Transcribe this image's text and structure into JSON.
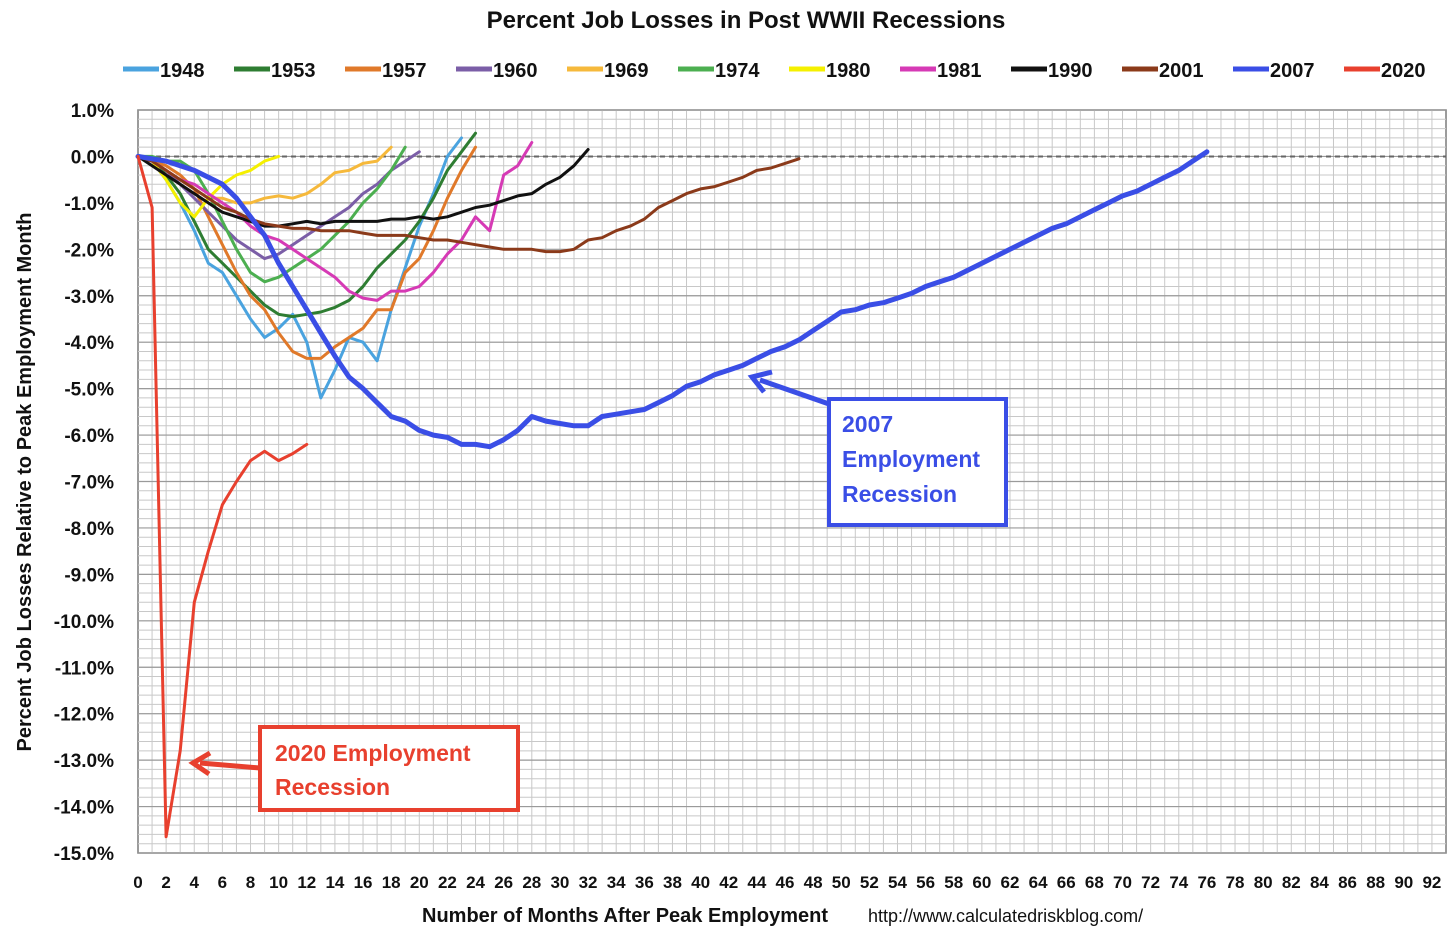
{
  "chart_data": {
    "type": "line",
    "title": "Percent Job Losses in Post WWII Recessions",
    "xlabel": "Number of Months After Peak Employment",
    "ylabel": "Percent Job Losses Relative to Peak Employment Month",
    "source": "http://www.calculatedriskblog.com/",
    "xlim": [
      0,
      93
    ],
    "ylim": [
      -15,
      1
    ],
    "x_ticks": [
      0,
      2,
      4,
      6,
      8,
      10,
      12,
      14,
      16,
      18,
      20,
      22,
      24,
      26,
      28,
      30,
      32,
      34,
      36,
      38,
      40,
      42,
      44,
      46,
      48,
      50,
      52,
      54,
      56,
      58,
      60,
      62,
      64,
      66,
      68,
      70,
      72,
      74,
      76,
      78,
      80,
      82,
      84,
      86,
      88,
      90,
      92
    ],
    "y_ticks": [
      1,
      0,
      -1,
      -2,
      -3,
      -4,
      -5,
      -6,
      -7,
      -8,
      -9,
      -10,
      -11,
      -12,
      -13,
      -14,
      -15
    ],
    "y_tick_labels": [
      "1.0%",
      "0.0%",
      "-1.0%",
      "-2.0%",
      "-3.0%",
      "-4.0%",
      "-5.0%",
      "-6.0%",
      "-7.0%",
      "-8.0%",
      "-9.0%",
      "-10.0%",
      "-11.0%",
      "-12.0%",
      "-13.0%",
      "-14.0%",
      "-15.0%"
    ],
    "grid": true,
    "legend_position": "top",
    "series": [
      {
        "name": "1948",
        "color": "#4aa3df",
        "width": 3,
        "values": [
          0,
          -0.1,
          -0.5,
          -1.0,
          -1.6,
          -2.3,
          -2.5,
          -3.0,
          -3.5,
          -3.9,
          -3.7,
          -3.4,
          -4.0,
          -5.2,
          -4.6,
          -3.9,
          -4.0,
          -4.4,
          -3.3,
          -2.4,
          -1.5,
          -0.8,
          0.0,
          0.4
        ]
      },
      {
        "name": "1953",
        "color": "#2e7d32",
        "width": 3,
        "values": [
          0,
          -0.1,
          -0.4,
          -0.8,
          -1.4,
          -2.0,
          -2.3,
          -2.6,
          -2.9,
          -3.2,
          -3.4,
          -3.45,
          -3.4,
          -3.35,
          -3.25,
          -3.1,
          -2.8,
          -2.4,
          -2.1,
          -1.8,
          -1.4,
          -0.9,
          -0.3,
          0.1,
          0.5
        ]
      },
      {
        "name": "1957",
        "color": "#e0792a",
        "width": 3,
        "values": [
          0,
          -0.1,
          -0.2,
          -0.4,
          -0.7,
          -1.3,
          -1.9,
          -2.5,
          -3.0,
          -3.3,
          -3.8,
          -4.2,
          -4.35,
          -4.35,
          -4.1,
          -3.9,
          -3.7,
          -3.3,
          -3.3,
          -2.5,
          -2.2,
          -1.6,
          -0.9,
          -0.3,
          0.2
        ]
      },
      {
        "name": "1960",
        "color": "#7b5ea7",
        "width": 3,
        "values": [
          0,
          -0.1,
          -0.3,
          -0.6,
          -0.9,
          -1.2,
          -1.5,
          -1.8,
          -2.0,
          -2.2,
          -2.1,
          -1.9,
          -1.7,
          -1.5,
          -1.3,
          -1.1,
          -0.8,
          -0.6,
          -0.3,
          -0.1,
          0.1
        ]
      },
      {
        "name": "1969",
        "color": "#f6b93b",
        "width": 3,
        "values": [
          0,
          -0.1,
          -0.3,
          -0.5,
          -0.7,
          -0.9,
          -0.9,
          -1.0,
          -1.0,
          -0.9,
          -0.85,
          -0.9,
          -0.8,
          -0.6,
          -0.35,
          -0.3,
          -0.15,
          -0.1,
          0.2
        ]
      },
      {
        "name": "1974",
        "color": "#4caf50",
        "width": 3,
        "values": [
          0,
          0,
          -0.1,
          -0.1,
          -0.3,
          -0.8,
          -1.4,
          -2.0,
          -2.5,
          -2.7,
          -2.6,
          -2.4,
          -2.2,
          -2.0,
          -1.7,
          -1.4,
          -1.0,
          -0.7,
          -0.3,
          0.2
        ]
      },
      {
        "name": "1980",
        "color": "#f5f000",
        "width": 3,
        "values": [
          0,
          -0.1,
          -0.5,
          -1.0,
          -1.3,
          -0.9,
          -0.6,
          -0.4,
          -0.3,
          -0.1,
          0.0
        ]
      },
      {
        "name": "1981",
        "color": "#d63ab5",
        "width": 3,
        "values": [
          0,
          -0.1,
          -0.3,
          -0.5,
          -0.6,
          -0.8,
          -1.0,
          -1.2,
          -1.5,
          -1.7,
          -1.8,
          -2.0,
          -2.2,
          -2.4,
          -2.6,
          -2.9,
          -3.05,
          -3.1,
          -2.9,
          -2.9,
          -2.8,
          -2.5,
          -2.1,
          -1.8,
          -1.3,
          -1.6,
          -0.4,
          -0.2,
          0.3
        ]
      },
      {
        "name": "1990",
        "color": "#111111",
        "width": 3,
        "values": [
          0,
          -0.2,
          -0.4,
          -0.6,
          -0.8,
          -1.0,
          -1.2,
          -1.3,
          -1.4,
          -1.5,
          -1.5,
          -1.45,
          -1.4,
          -1.45,
          -1.4,
          -1.4,
          -1.4,
          -1.4,
          -1.35,
          -1.35,
          -1.3,
          -1.35,
          -1.3,
          -1.2,
          -1.1,
          -1.05,
          -0.95,
          -0.85,
          -0.8,
          -0.6,
          -0.45,
          -0.2,
          0.15
        ]
      },
      {
        "name": "2001",
        "color": "#8b3a1a",
        "width": 3,
        "values": [
          0,
          -0.1,
          -0.3,
          -0.5,
          -0.7,
          -0.9,
          -1.1,
          -1.2,
          -1.35,
          -1.45,
          -1.5,
          -1.55,
          -1.55,
          -1.6,
          -1.6,
          -1.6,
          -1.65,
          -1.7,
          -1.7,
          -1.7,
          -1.75,
          -1.8,
          -1.8,
          -1.85,
          -1.9,
          -1.95,
          -2.0,
          -2.0,
          -2.0,
          -2.05,
          -2.05,
          -2.0,
          -1.8,
          -1.75,
          -1.6,
          -1.5,
          -1.35,
          -1.1,
          -0.95,
          -0.8,
          -0.7,
          -0.65,
          -0.55,
          -0.45,
          -0.3,
          -0.25,
          -0.15,
          -0.05
        ]
      },
      {
        "name": "2007",
        "color": "#3a4ee6",
        "width": 5,
        "values": [
          0,
          -0.05,
          -0.1,
          -0.2,
          -0.3,
          -0.45,
          -0.6,
          -0.9,
          -1.3,
          -1.7,
          -2.3,
          -2.8,
          -3.3,
          -3.8,
          -4.3,
          -4.75,
          -5.0,
          -5.3,
          -5.6,
          -5.7,
          -5.9,
          -6.0,
          -6.05,
          -6.2,
          -6.2,
          -6.25,
          -6.1,
          -5.9,
          -5.6,
          -5.7,
          -5.75,
          -5.8,
          -5.8,
          -5.6,
          -5.55,
          -5.5,
          -5.45,
          -5.3,
          -5.15,
          -4.95,
          -4.85,
          -4.7,
          -4.6,
          -4.5,
          -4.35,
          -4.2,
          -4.1,
          -3.95,
          -3.75,
          -3.55,
          -3.35,
          -3.3,
          -3.2,
          -3.15,
          -3.05,
          -2.95,
          -2.8,
          -2.7,
          -2.6,
          -2.45,
          -2.3,
          -2.15,
          -2.0,
          -1.85,
          -1.7,
          -1.55,
          -1.45,
          -1.3,
          -1.15,
          -1.0,
          -0.85,
          -0.75,
          -0.6,
          -0.45,
          -0.3,
          -0.1,
          0.1
        ]
      },
      {
        "name": "2020",
        "color": "#e8402e",
        "width": 3,
        "values": [
          0,
          -1.1,
          -14.65,
          -12.8,
          -9.6,
          -8.5,
          -7.5,
          -7.0,
          -6.55,
          -6.35,
          -6.55,
          -6.4,
          -6.2
        ]
      }
    ],
    "annotations": [
      {
        "line1": "2007",
        "line2": "Employment",
        "line3": "Recession",
        "color": "#3a4ee6"
      },
      {
        "line1": "2020 Employment",
        "line2": "Recession",
        "color": "#e8402e"
      }
    ]
  }
}
